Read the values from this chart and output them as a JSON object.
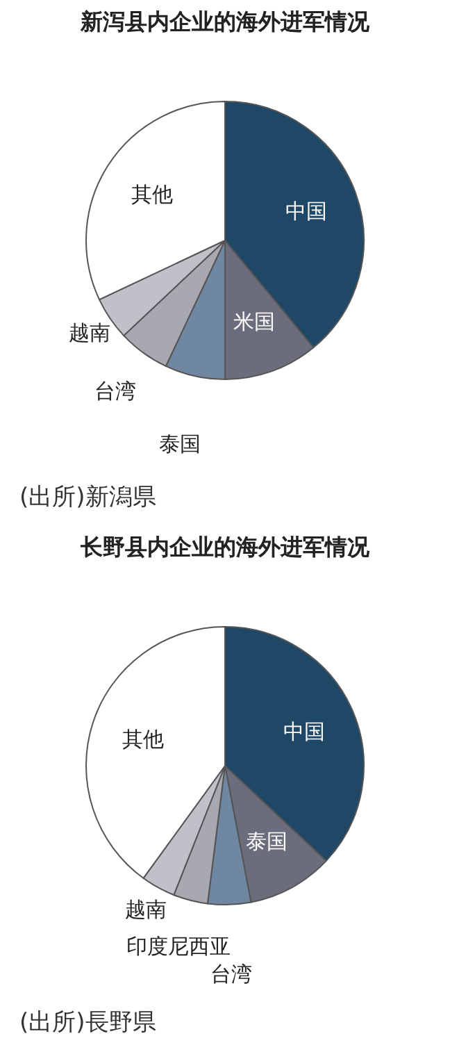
{
  "chart_data": [
    {
      "type": "pie",
      "title": "新泻县内企业的海外进军情况",
      "categories": [
        "中国",
        "米国",
        "泰国",
        "台湾",
        "越南",
        "其他"
      ],
      "values": [
        39,
        11,
        7,
        6,
        5,
        32
      ],
      "colors": [
        "#1f4766",
        "#6b6d7d",
        "#6f87a0",
        "#a8a8b0",
        "#c0c0c8",
        "#ffffff"
      ],
      "legend": false,
      "annotations": [
        "(出所)新潟県"
      ]
    },
    {
      "type": "pie",
      "title": "长野县内企业的海外进军情况",
      "categories": [
        "中国",
        "泰国",
        "台湾",
        "印度尼西亚",
        "越南",
        "其他"
      ],
      "values": [
        37,
        10,
        5,
        4,
        4,
        40
      ],
      "colors": [
        "#1f4766",
        "#6b6d7d",
        "#6f87a0",
        "#a8a8b0",
        "#c0c0c8",
        "#ffffff"
      ],
      "legend": false,
      "annotations": [
        "(出所)長野県"
      ]
    }
  ]
}
